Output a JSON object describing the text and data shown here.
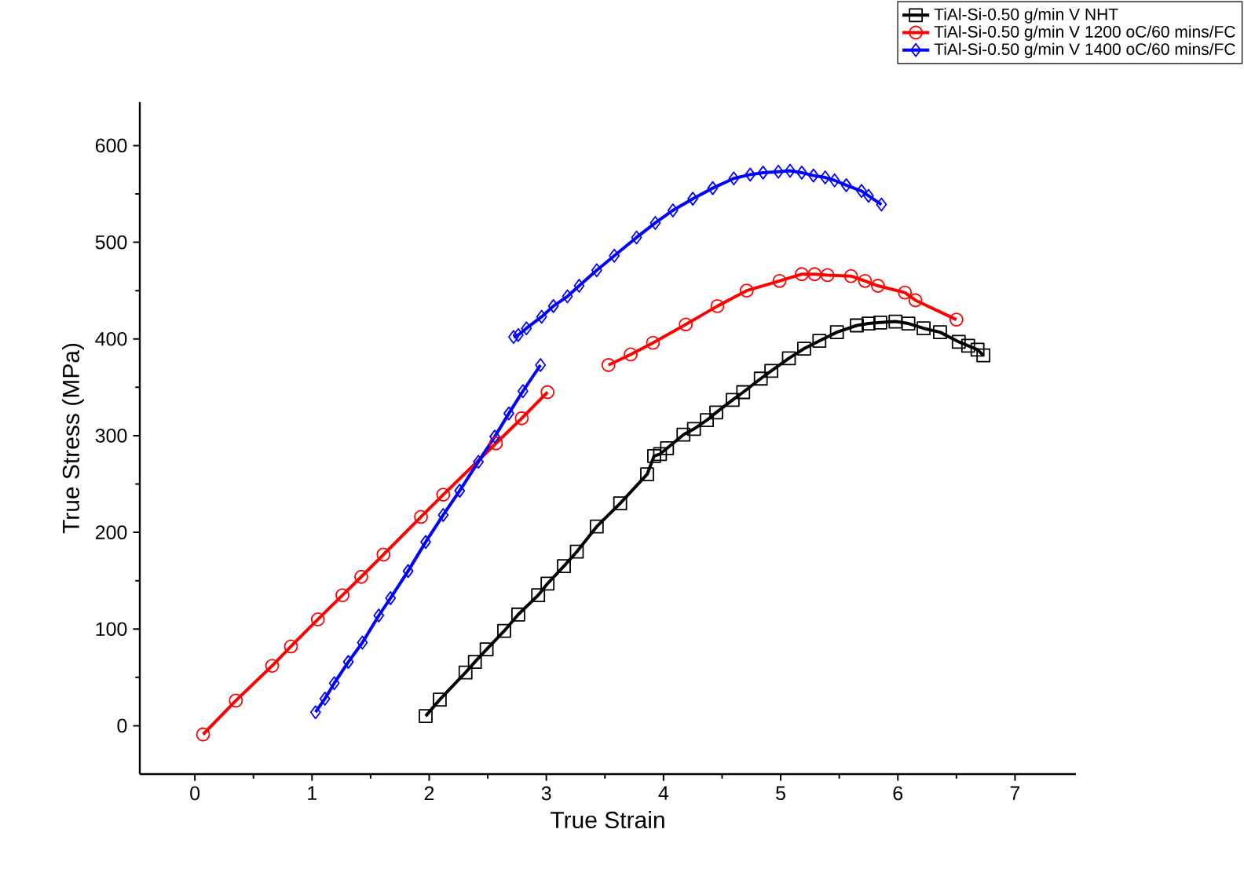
{
  "chart_data": {
    "type": "line",
    "xlabel": "True Strain",
    "ylabel": "True Stress (MPa)",
    "xlim": [
      -0.47,
      7.52
    ],
    "ylim": [
      -50,
      645
    ],
    "xticks": [
      0,
      1,
      2,
      3,
      4,
      5,
      6,
      7
    ],
    "yticks": [
      0,
      100,
      200,
      300,
      400,
      500,
      600
    ],
    "legend": "top right",
    "grid": false,
    "series": [
      {
        "name": "TiAl-Si-0.50 g/min V NHT",
        "color": "#000000",
        "marker": "square",
        "x": [
          1.97,
          2.09,
          2.31,
          2.39,
          2.49,
          2.64,
          2.76,
          2.93,
          3.01,
          3.15,
          3.26,
          3.43,
          3.63,
          3.86,
          3.92,
          3.97,
          4.03,
          4.17,
          4.26,
          4.37,
          4.45,
          4.59,
          4.68,
          4.83,
          4.92,
          5.07,
          5.2,
          5.33,
          5.48,
          5.65,
          5.75,
          5.85,
          5.98,
          6.09,
          6.22,
          6.36,
          6.52,
          6.6,
          6.68,
          6.73
        ],
        "values": [
          10,
          27,
          55,
          66,
          79,
          98,
          115,
          135,
          147,
          165,
          180,
          206,
          230,
          260,
          279,
          281,
          287,
          301,
          307,
          316,
          324,
          337,
          345,
          359,
          367,
          380,
          390,
          398,
          407,
          414,
          416,
          417,
          418,
          416,
          411,
          407,
          397,
          393,
          389,
          383
        ]
      },
      {
        "name": "TiAl-Si-0.50 g/min V 1200 oC/60 mins/FC",
        "color": "#ff0000",
        "marker": "circle",
        "x": [
          0.07,
          0.35,
          0.66,
          0.82,
          1.05,
          1.26,
          1.42,
          1.61,
          1.93,
          2.12,
          2.57,
          2.79,
          3.01,
          3.27,
          3.53,
          3.72,
          3.91,
          4.19,
          4.46,
          4.71,
          4.99,
          5.18,
          5.29,
          5.4,
          5.6,
          5.72,
          5.83,
          6.06,
          6.15,
          6.5
        ],
        "values": [
          -9,
          26,
          62,
          82,
          110,
          135,
          154,
          177,
          216,
          239,
          292,
          318,
          345,
          null,
          373,
          384,
          396,
          415,
          434,
          450,
          460,
          467,
          467,
          466,
          465,
          460,
          455,
          448,
          440,
          420
        ]
      },
      {
        "name": "TiAl-Si-0.50 g/min V 1400 oC/60 mins/FC",
        "color": "#0000ff",
        "marker": "diamond",
        "x": [
          1.03,
          1.11,
          1.19,
          1.31,
          1.43,
          1.57,
          1.67,
          1.82,
          1.97,
          2.12,
          2.26,
          2.42,
          2.56,
          2.68,
          2.8,
          2.95,
          2.84,
          2.72,
          2.76,
          2.83,
          2.96,
          3.06,
          3.18,
          3.28,
          3.43,
          3.58,
          3.77,
          3.93,
          4.08,
          4.25,
          4.42,
          4.6,
          4.74,
          4.85,
          4.98,
          5.08,
          5.18,
          5.28,
          5.38,
          5.46,
          5.56,
          5.69,
          5.75,
          5.86
        ],
        "values": [
          14,
          28,
          44,
          66,
          86,
          114,
          132,
          160,
          190,
          218,
          243,
          273,
          299,
          323,
          346,
          373,
          null,
          402,
          404,
          411,
          423,
          434,
          444,
          455,
          471,
          486,
          505,
          520,
          533,
          545,
          556,
          566,
          570,
          572,
          573,
          574,
          572,
          569,
          567,
          564,
          559,
          553,
          548,
          539
        ]
      }
    ]
  }
}
